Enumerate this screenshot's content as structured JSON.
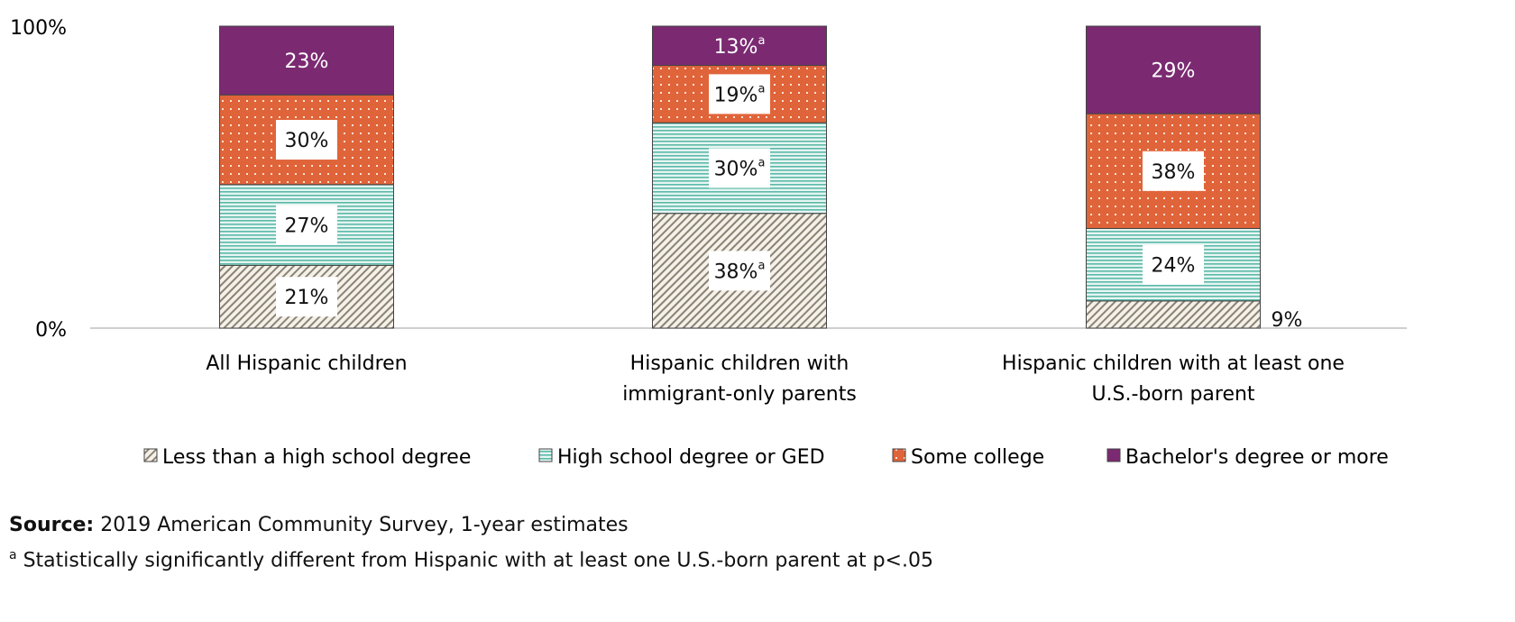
{
  "chart_data": {
    "type": "stacked-bar",
    "ylim": [
      0,
      100
    ],
    "yticks": [
      "0%",
      "100%"
    ],
    "grid": false,
    "legend_position": "bottom",
    "categories": [
      [
        "All Hispanic children"
      ],
      [
        "Hispanic children with",
        "immigrant-only parents"
      ],
      [
        "Hispanic children with at least one",
        "U.S.-born parent"
      ]
    ],
    "series": [
      {
        "name": "Less than a high school degree",
        "values": [
          21,
          38,
          9
        ],
        "flags": [
          "",
          "a",
          ""
        ],
        "color": "#8C8272",
        "pattern": "diagonal-hatch"
      },
      {
        "name": "High school degree or GED",
        "values": [
          27,
          30,
          24
        ],
        "flags": [
          "",
          "a",
          ""
        ],
        "color": "#5BB9A8",
        "pattern": "horizontal-lines"
      },
      {
        "name": "Some college",
        "values": [
          30,
          19,
          38
        ],
        "flags": [
          "",
          "a",
          ""
        ],
        "color": "#E0643A",
        "pattern": "dots"
      },
      {
        "name": "Bachelor's degree or more",
        "values": [
          23,
          13,
          29
        ],
        "flags": [
          "",
          "a",
          ""
        ],
        "color": "#7B2A72",
        "pattern": "solid"
      }
    ]
  },
  "notes": {
    "source_label": "Source:",
    "source_text": " 2019 American Community Survey, 1-year estimates",
    "footnote_marker": "a",
    "footnote_text": " Statistically significantly different from Hispanic with at least one U.S.-born parent at p<.05"
  }
}
